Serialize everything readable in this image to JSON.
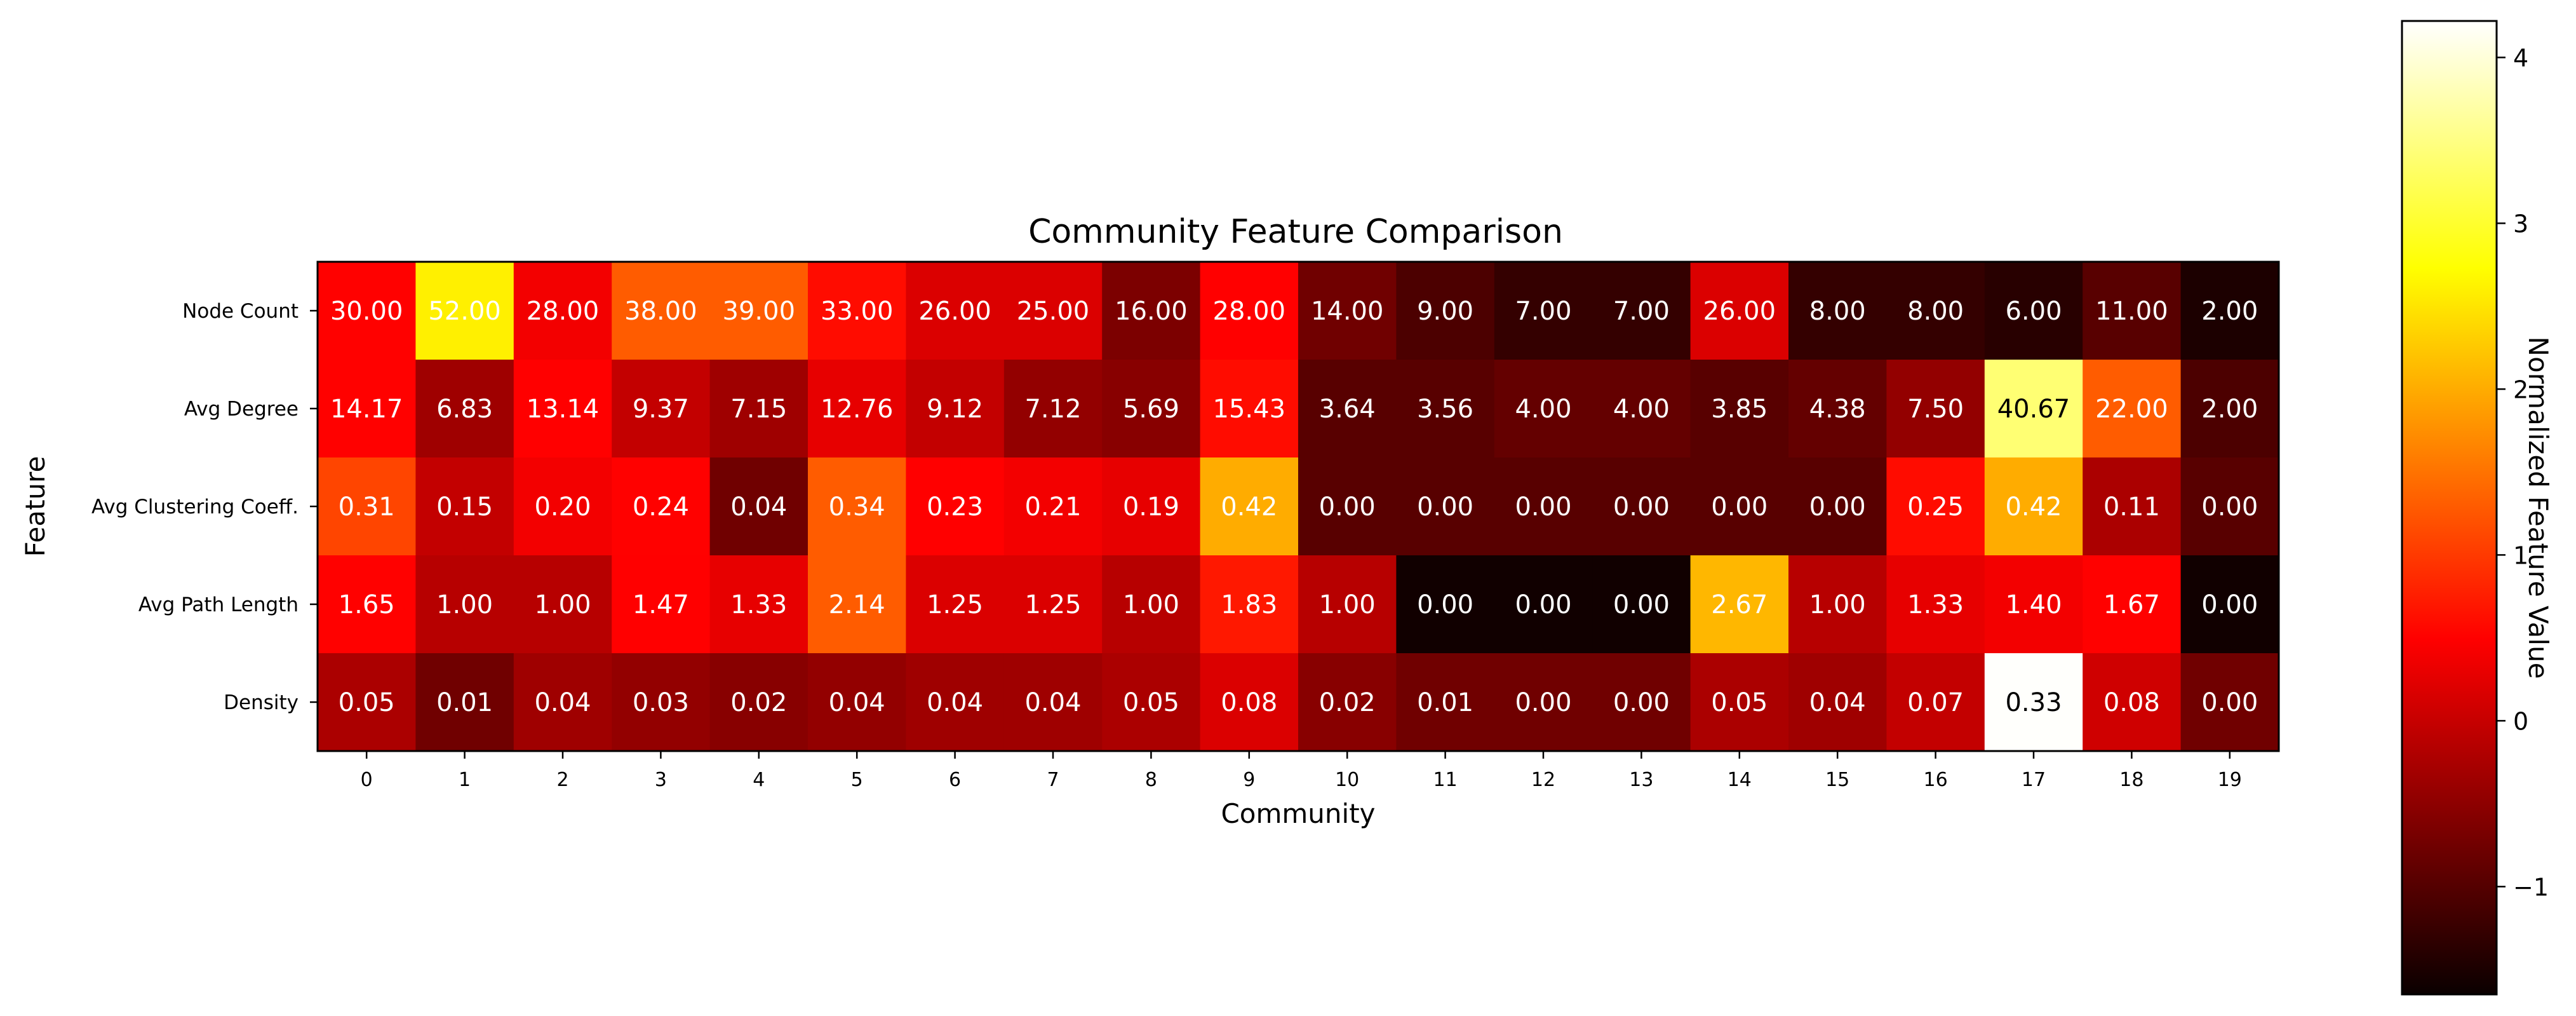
{
  "chart_data": {
    "type": "heatmap",
    "title": "Community Feature Comparison",
    "xlabel": "Community",
    "ylabel": "Feature",
    "x_ticks": [
      "0",
      "1",
      "2",
      "3",
      "4",
      "5",
      "6",
      "7",
      "8",
      "9",
      "10",
      "11",
      "12",
      "13",
      "14",
      "15",
      "16",
      "17",
      "18",
      "19"
    ],
    "y_ticks": [
      "Node Count",
      "Avg Degree",
      "Avg Clustering Coeff.",
      "Avg Path Length",
      "Density"
    ],
    "cell_labels": [
      [
        "30.00",
        "52.00",
        "28.00",
        "38.00",
        "39.00",
        "33.00",
        "26.00",
        "25.00",
        "16.00",
        "28.00",
        "14.00",
        "9.00",
        "7.00",
        "7.00",
        "26.00",
        "8.00",
        "8.00",
        "6.00",
        "11.00",
        "2.00"
      ],
      [
        "14.17",
        "6.83",
        "13.14",
        "9.37",
        "7.15",
        "12.76",
        "9.12",
        "7.12",
        "5.69",
        "15.43",
        "3.64",
        "3.56",
        "4.00",
        "4.00",
        "3.85",
        "4.38",
        "7.50",
        "40.67",
        "22.00",
        "2.00"
      ],
      [
        "0.31",
        "0.15",
        "0.20",
        "0.24",
        "0.04",
        "0.34",
        "0.23",
        "0.21",
        "0.19",
        "0.42",
        "0.00",
        "0.00",
        "0.00",
        "0.00",
        "0.00",
        "0.00",
        "0.25",
        "0.42",
        "0.11",
        "0.00"
      ],
      [
        "1.65",
        "1.00",
        "1.00",
        "1.47",
        "1.33",
        "2.14",
        "1.25",
        "1.25",
        "1.00",
        "1.83",
        "1.00",
        "0.00",
        "0.00",
        "0.00",
        "2.67",
        "1.00",
        "1.33",
        "1.40",
        "1.67",
        "0.00"
      ],
      [
        "0.05",
        "0.01",
        "0.04",
        "0.03",
        "0.02",
        "0.04",
        "0.04",
        "0.04",
        "0.05",
        "0.08",
        "0.02",
        "0.01",
        "0.00",
        "0.00",
        "0.05",
        "0.04",
        "0.07",
        "0.33",
        "0.08",
        "0.00"
      ]
    ],
    "normalized_values": [
      [
        0.5,
        2.6,
        0.3,
        1.3,
        1.3,
        0.6,
        0.1,
        0.1,
        -0.7,
        0.4,
        -0.8,
        -1.1,
        -1.3,
        -1.3,
        0.1,
        -1.3,
        -1.3,
        -1.4,
        -1.0,
        -1.5
      ],
      [
        0.5,
        -0.4,
        0.4,
        -0.1,
        -0.4,
        0.2,
        -0.1,
        -0.5,
        -0.6,
        0.6,
        -1.0,
        -1.0,
        -0.9,
        -0.9,
        -1.0,
        -0.9,
        -0.5,
        3.4,
        1.3,
        -1.1
      ],
      [
        1.1,
        -0.1,
        0.3,
        0.5,
        -0.8,
        1.3,
        0.4,
        0.3,
        0.2,
        2.0,
        -1.0,
        -1.0,
        -1.0,
        -1.0,
        -1.0,
        -1.0,
        0.6,
        2.0,
        -0.3,
        -1.0
      ],
      [
        0.5,
        -0.2,
        -0.2,
        0.4,
        0.2,
        1.3,
        0.1,
        0.1,
        -0.2,
        0.7,
        -0.2,
        -1.6,
        -1.6,
        -1.6,
        2.1,
        -0.2,
        0.2,
        0.3,
        0.5,
        -1.6
      ],
      [
        -0.3,
        -0.8,
        -0.4,
        -0.5,
        -0.6,
        -0.5,
        -0.4,
        -0.4,
        -0.3,
        0.1,
        -0.6,
        -0.8,
        -0.8,
        -0.8,
        -0.3,
        -0.4,
        -0.1,
        4.2,
        0.0,
        -0.8
      ]
    ],
    "colormap": "hot",
    "colorbar": {
      "label": "Normalized Feature Value",
      "min": -1.65,
      "max": 4.22,
      "ticks": [
        4,
        3,
        2,
        1,
        0,
        -1
      ],
      "tick_labels": [
        "4",
        "3",
        "2",
        "1",
        "0",
        "−1"
      ]
    }
  }
}
